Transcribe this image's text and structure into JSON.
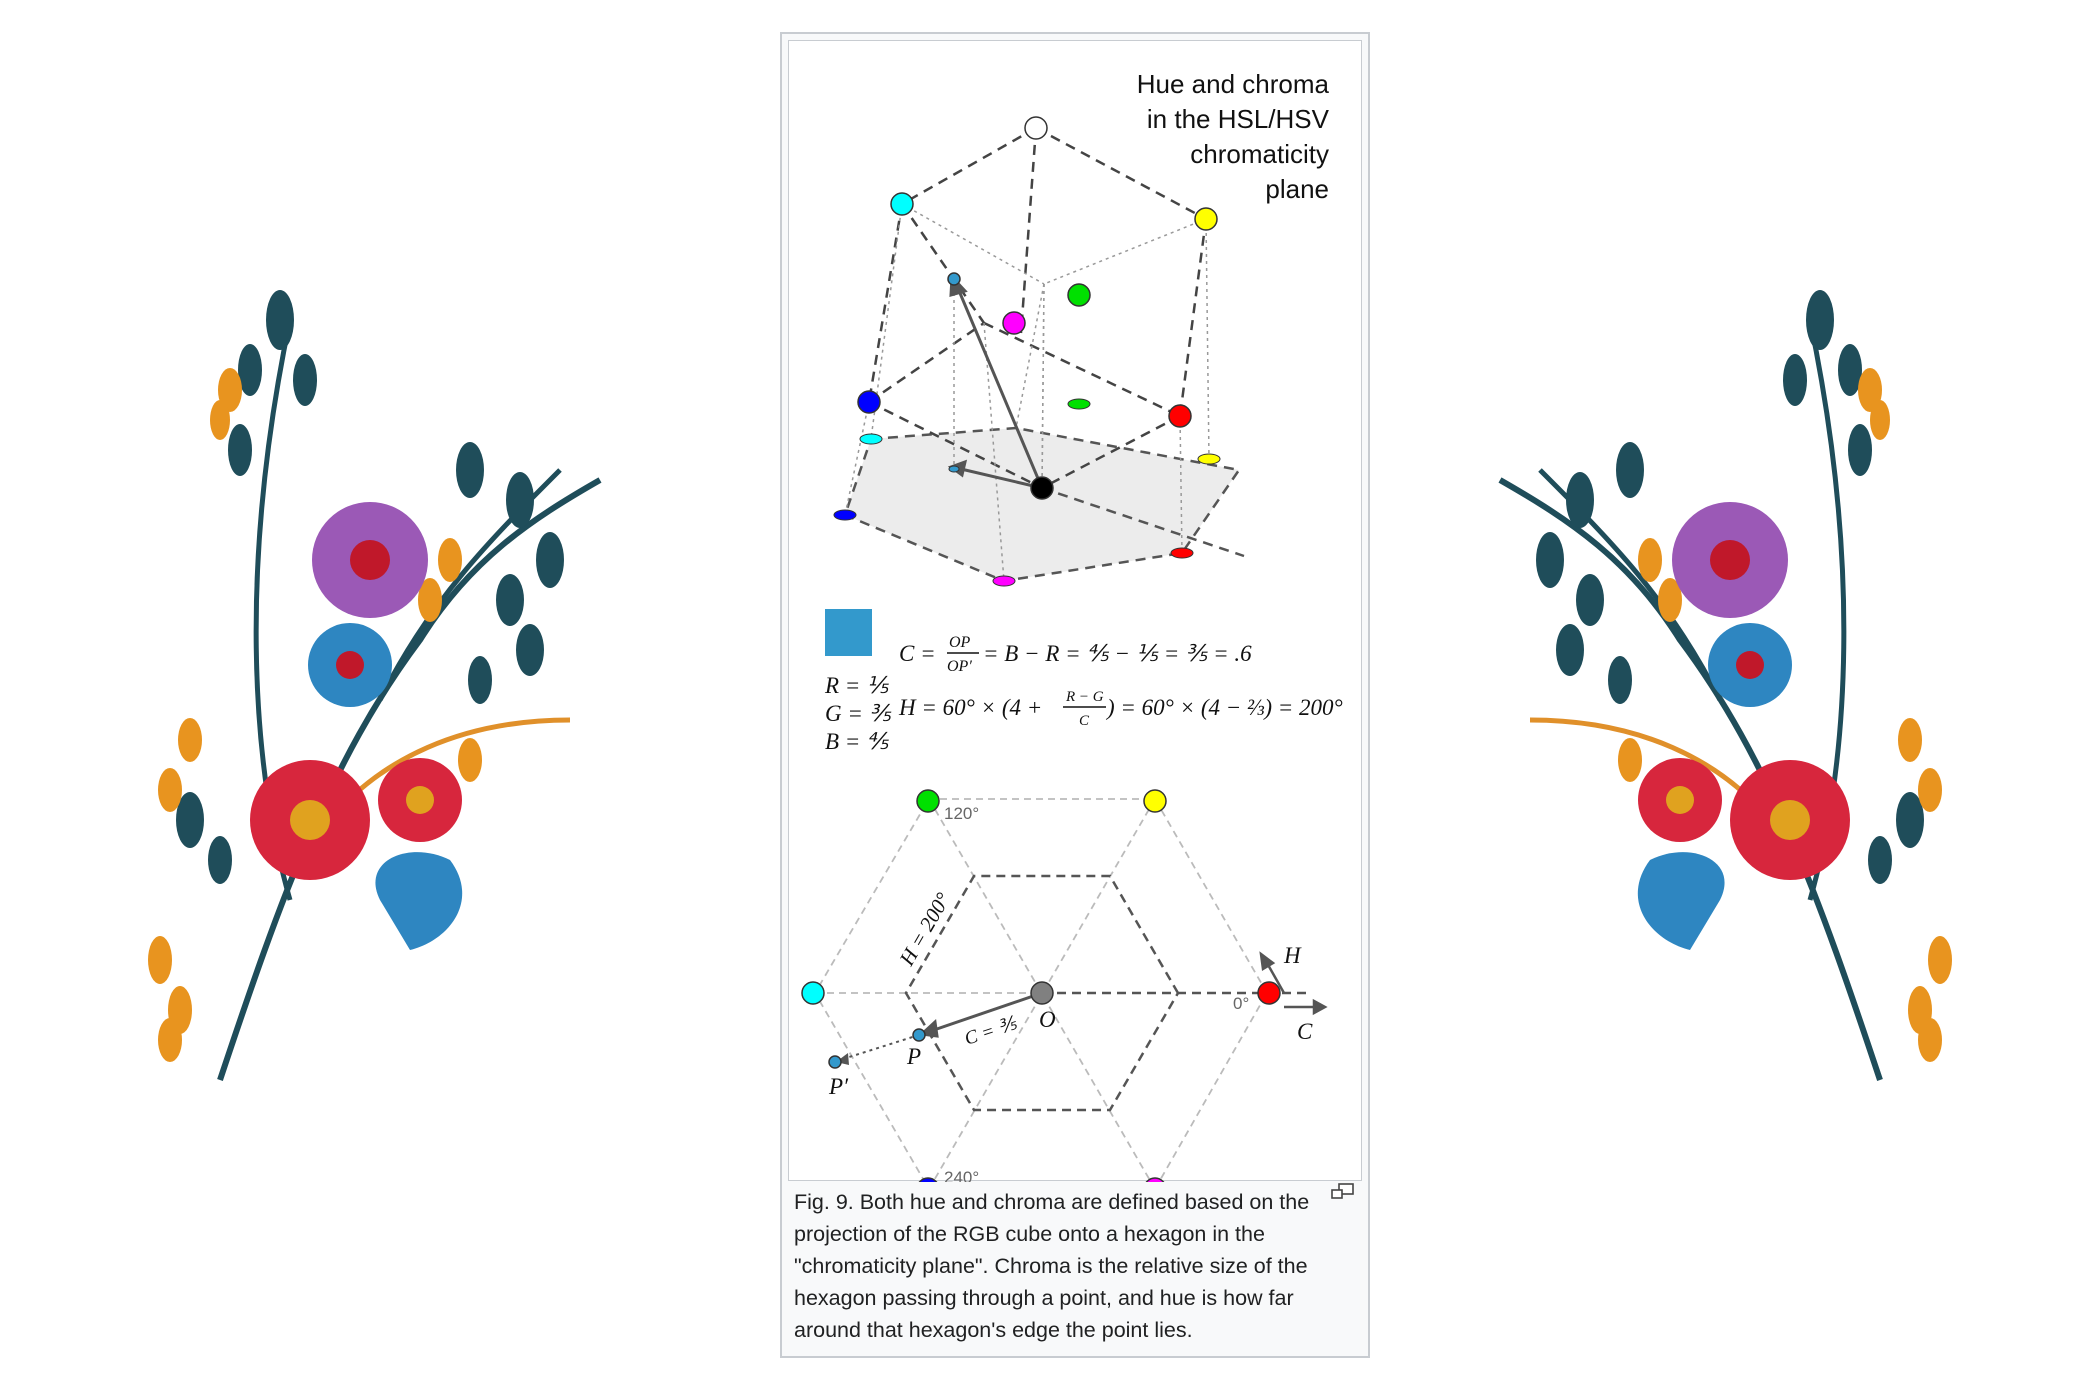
{
  "figure": {
    "title_lines": [
      "Hue and chroma",
      "in the HSL/HSV",
      "chromaticity",
      "plane"
    ],
    "rgb": {
      "r": "R = ⅕",
      "g": "G = ⅗",
      "b": "B = ⅘"
    },
    "swatch_color": "#3399cc",
    "formula_c": {
      "lhs": "C =",
      "num": "OP",
      "den": "OP′",
      "rhs": "= B − R = ⅘ − ⅕ = ⅗ = .6"
    },
    "formula_h": {
      "lhs": "H = 60° × (4 +",
      "num": "R − G",
      "den": "C",
      "rhs": ") = 60° × (4 − ⅔) = 200°"
    },
    "hex_labels": {
      "deg120": "120°",
      "deg240": "240°",
      "deg0": "0°",
      "h200": "H = 200°",
      "c35": "C = ⅗",
      "o": "O",
      "p": "P",
      "pprime": "P′",
      "h": "H",
      "c": "C"
    },
    "colors": {
      "red": "#ff0000",
      "yellow": "#ffff00",
      "green": "#00e000",
      "cyan": "#00ffff",
      "blue": "#0000ff",
      "magenta": "#ff00ff",
      "white": "#ffffff",
      "black": "#000000",
      "gray": "#808080",
      "point": "#3399cc"
    }
  },
  "caption": "Fig. 9. Both hue and chroma are defined based on the projection of the RGB cube onto a hexagon in the \"chromaticity plane\". Chroma is the relative size of the hexagon passing through a point, and hue is how far around that hexagon's edge the point lies.",
  "magnify_icon": "magnify-icon"
}
